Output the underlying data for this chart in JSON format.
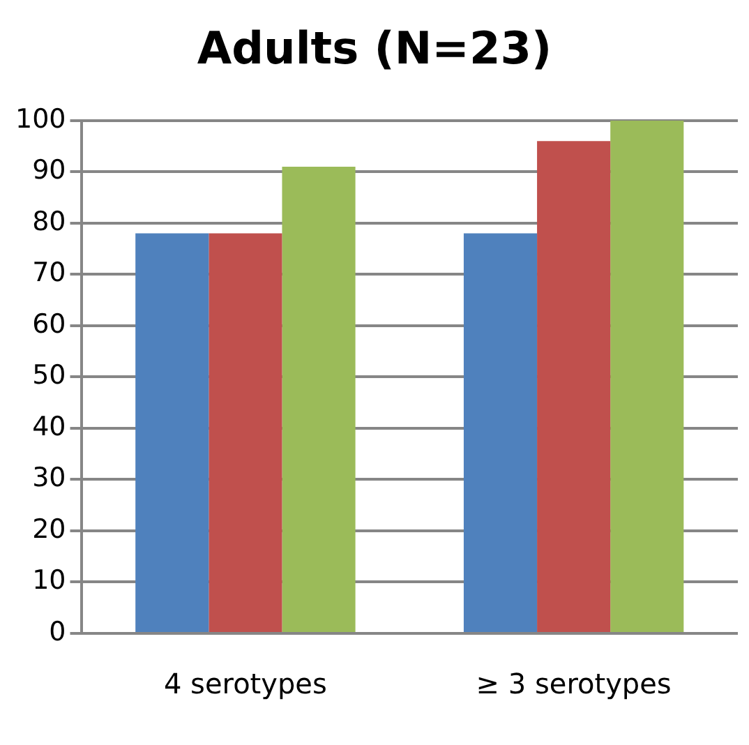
{
  "chart_data": {
    "type": "bar",
    "title": "Adults (N=23)",
    "categories": [
      "4 serotypes",
      "≥ 3 serotypes"
    ],
    "series": [
      {
        "color": "#4f81bd",
        "values": [
          78,
          78
        ]
      },
      {
        "color": "#c0504d",
        "values": [
          78,
          96
        ]
      },
      {
        "color": "#9bbb59",
        "values": [
          91,
          100
        ]
      }
    ],
    "ylim": [
      0,
      100
    ],
    "yticks": [
      0,
      10,
      20,
      30,
      40,
      50,
      60,
      70,
      80,
      90,
      100
    ],
    "grid": "y",
    "legend": false
  }
}
